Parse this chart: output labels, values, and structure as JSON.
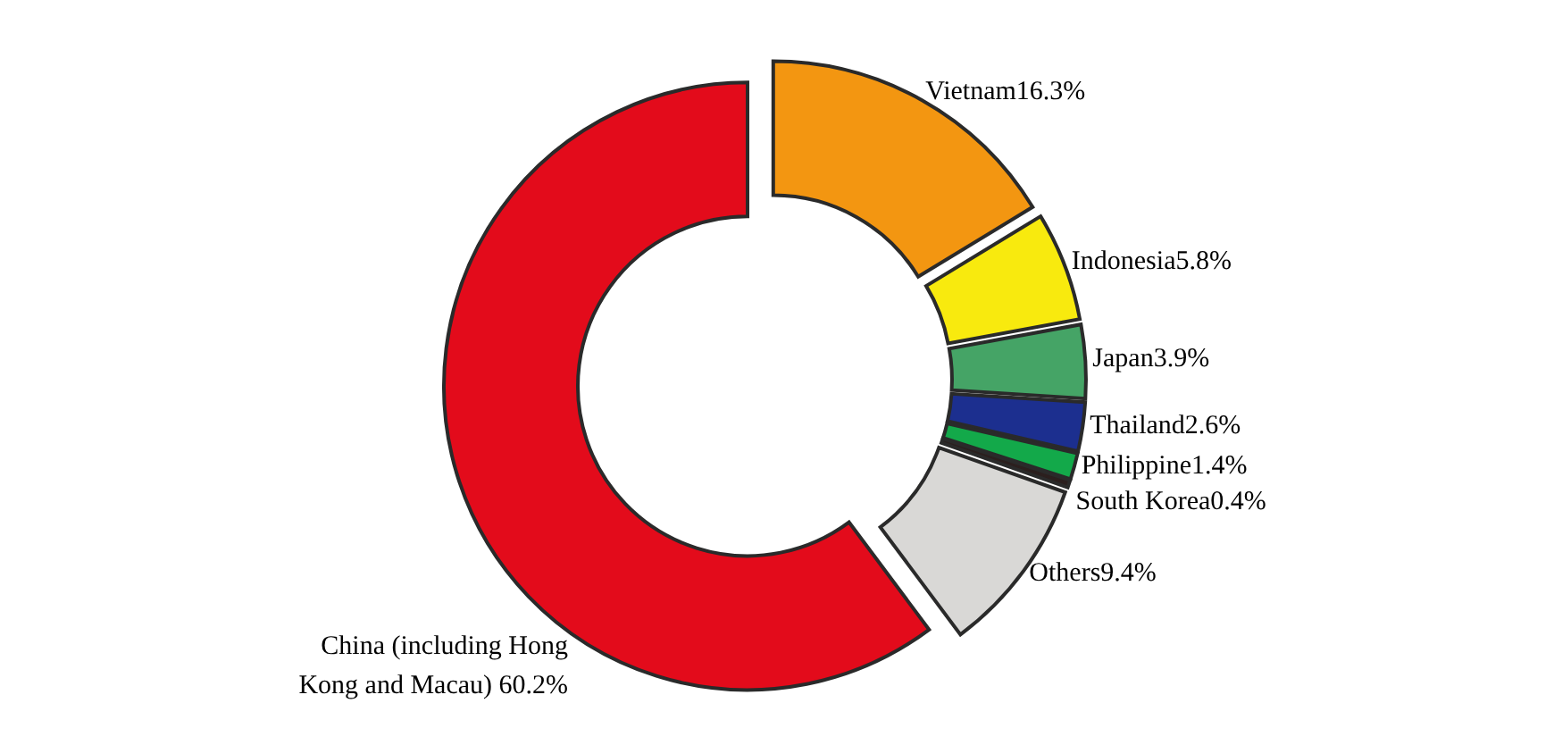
{
  "chart_data": {
    "type": "donut",
    "categories": [
      "Vietnam",
      "Indonesia",
      "Japan",
      "Thailand",
      "Philippine",
      "South Korea",
      "Others",
      "China (including Hong Kong and Macau)"
    ],
    "values": [
      16.3,
      5.8,
      3.9,
      2.6,
      1.4,
      0.4,
      9.4,
      60.2
    ],
    "colors": [
      "#f39611",
      "#f8ea0e",
      "#45a466",
      "#1c2f8f",
      "#13a94a",
      "#2b1f1e",
      "#d9d8d6",
      "#e30b1b"
    ],
    "value_labels": [
      "16.3%",
      "5.8%",
      "3.9%",
      "2.6%",
      "1.4%",
      "0.4%",
      "9.4%",
      "60.2%"
    ]
  }
}
